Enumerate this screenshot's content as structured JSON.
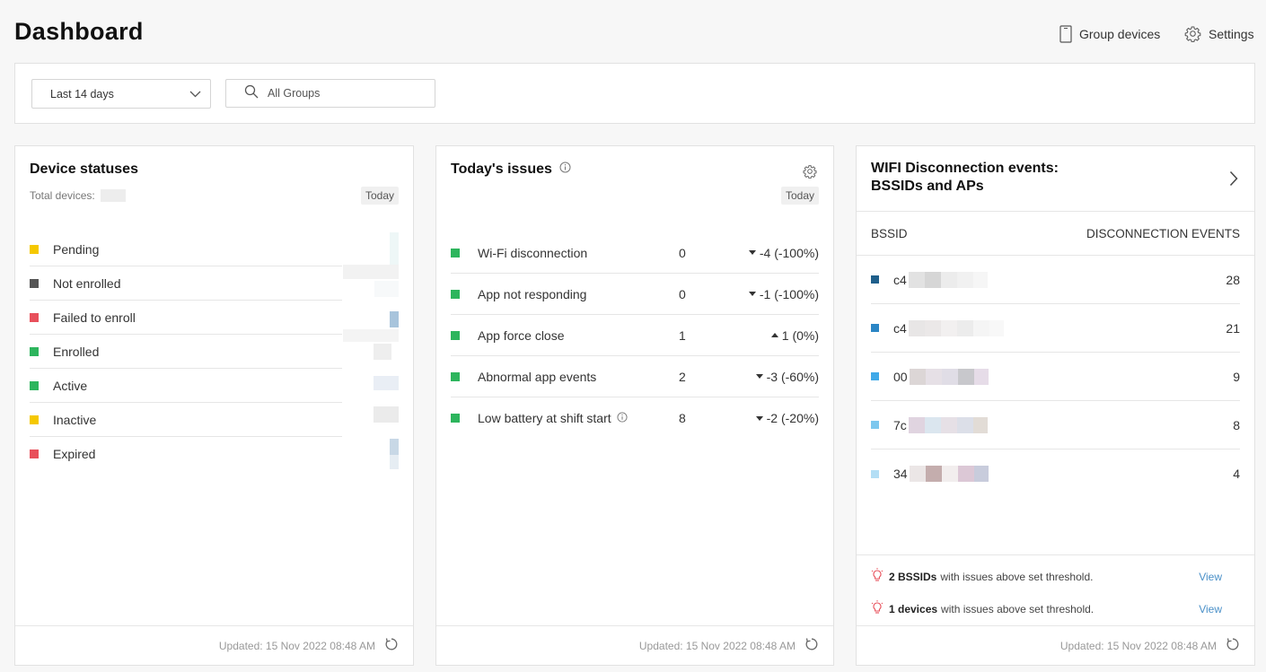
{
  "header": {
    "title": "Dashboard",
    "group_devices": "Group devices",
    "settings": "Settings"
  },
  "filters": {
    "period": "Last 14 days",
    "search_placeholder": "All Groups"
  },
  "device_statuses": {
    "title": "Device statuses",
    "total_label": "Total devices:",
    "badge": "Today",
    "items": [
      {
        "label": "Pending",
        "color": "#f5c800"
      },
      {
        "label": "Not enrolled",
        "color": "#555555"
      },
      {
        "label": "Failed to enroll",
        "color": "#e8505b"
      },
      {
        "label": "Enrolled",
        "color": "#2db55d"
      },
      {
        "label": "Active",
        "color": "#2db55d"
      },
      {
        "label": "Inactive",
        "color": "#f5c800"
      },
      {
        "label": "Expired",
        "color": "#e8505b"
      }
    ],
    "updated": "Updated: 15 Nov 2022 08:48 AM"
  },
  "issues": {
    "title": "Today's issues",
    "badge": "Today",
    "items": [
      {
        "label": "Wi-Fi disconnection",
        "count": "0",
        "change": "-4 (-100%)",
        "direction": "down"
      },
      {
        "label": "App not responding",
        "count": "0",
        "change": "-1 (-100%)",
        "direction": "down"
      },
      {
        "label": "App force close",
        "count": "1",
        "change": "1 (0%)",
        "direction": "up"
      },
      {
        "label": "Abnormal app events",
        "count": "2",
        "change": "-3 (-60%)",
        "direction": "down"
      },
      {
        "label": "Low battery at shift start",
        "count": "8",
        "change": "-2 (-20%)",
        "direction": "down"
      }
    ],
    "updated": "Updated: 15 Nov 2022 08:48 AM"
  },
  "wifi": {
    "title_line1": "WIFI Disconnection events:",
    "title_line2": "BSSIDs and APs",
    "col_bssid": "BSSID",
    "col_events": "DISCONNECTION EVENTS",
    "rows": [
      {
        "bssid": "c4",
        "events": "28",
        "color": "#1f5f8b"
      },
      {
        "bssid": "c4",
        "events": "21",
        "color": "#2b86c5"
      },
      {
        "bssid": "00",
        "events": "9",
        "color": "#3fa9e8"
      },
      {
        "bssid": "7c",
        "events": "8",
        "color": "#7cc7ee"
      },
      {
        "bssid": "34",
        "events": "4",
        "color": "#b3def5"
      }
    ],
    "threshold_bssids_bold": "2 BSSIDs",
    "threshold_bssids_rest": "with issues above set threshold.",
    "threshold_devices_bold": "1 devices",
    "threshold_devices_rest": "with issues above set threshold.",
    "view_label": "View",
    "updated": "Updated: 15 Nov 2022 08:48 AM"
  }
}
